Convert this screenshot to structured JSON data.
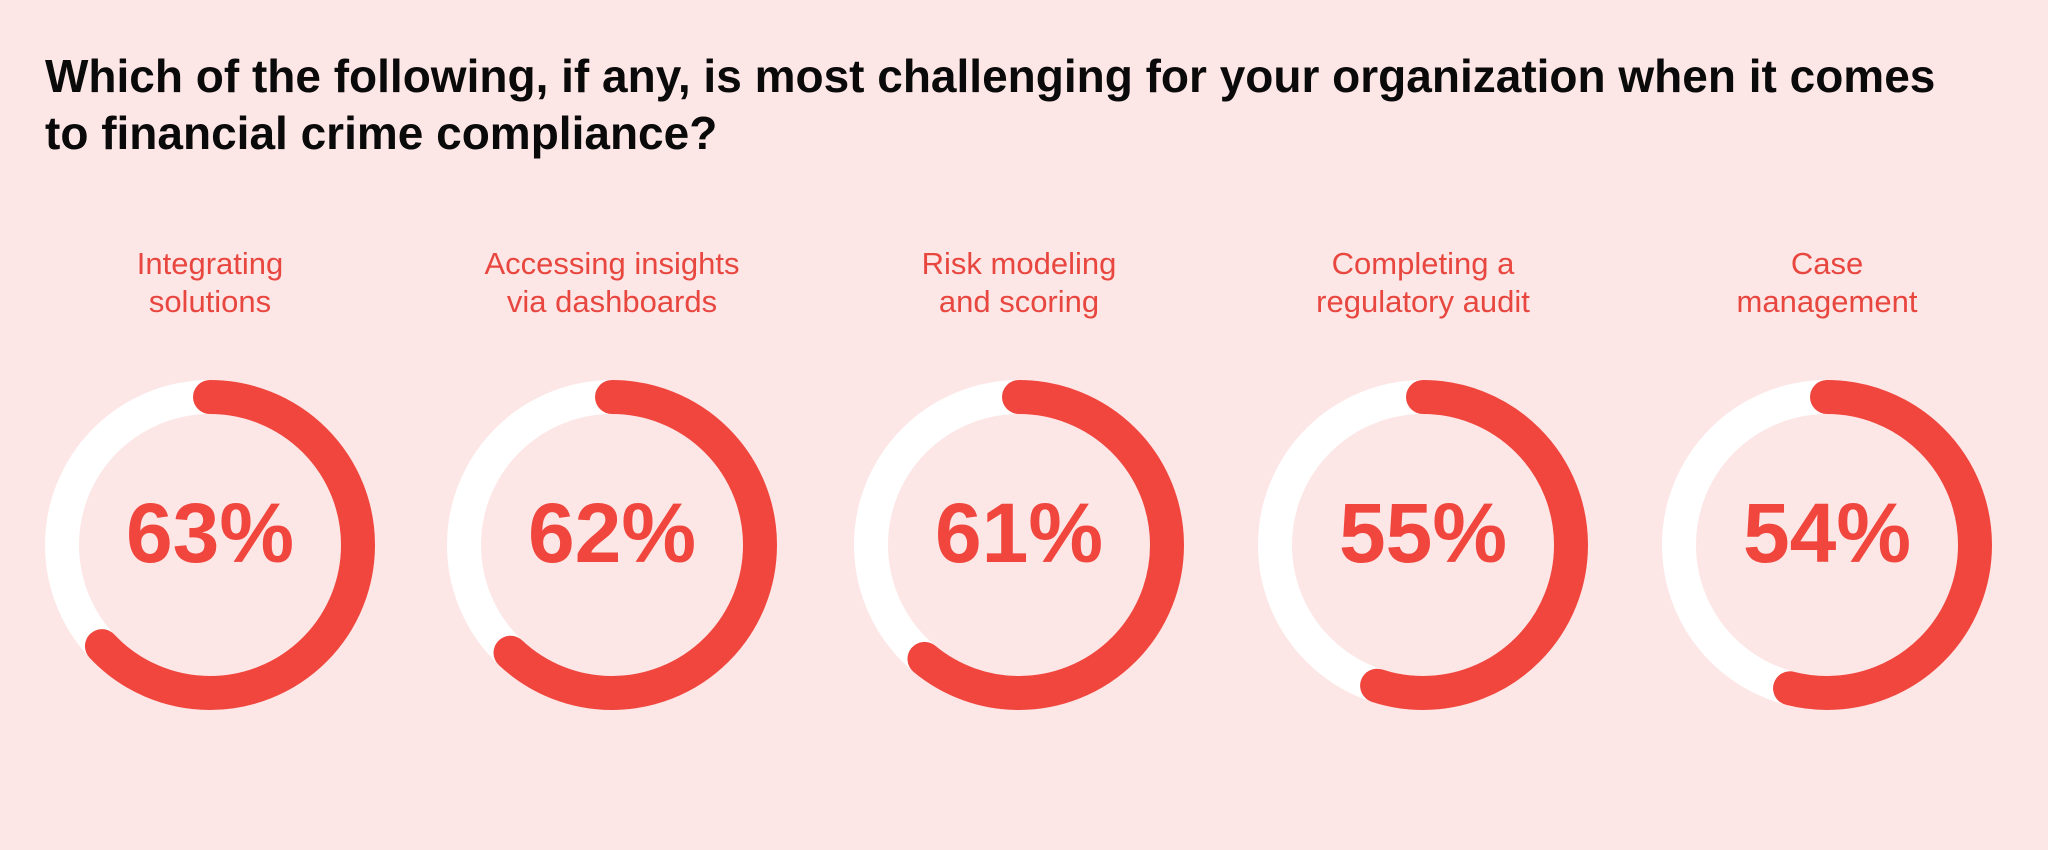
{
  "title": "Which of the following, if any, is most challenging for your organization when it comes to financial crime compliance?",
  "colors": {
    "background": "#fde6e6",
    "accent": "#f0463e",
    "track": "#ffffff",
    "label": "#e8473f",
    "title": "#0a0a0a"
  },
  "chart_data": {
    "type": "pie",
    "title": "Which of the following, if any, is most challenging for your organization when it comes to financial crime compliance?",
    "categories": [
      "Integrating solutions",
      "Accessing insights via dashboards",
      "Risk modeling and scoring",
      "Completing a regulatory audit",
      "Case management"
    ],
    "values": [
      63,
      62,
      61,
      55,
      54
    ],
    "unit": "%",
    "items": [
      {
        "label": "Integrating\nsolutions",
        "value": 63,
        "value_text": "63%"
      },
      {
        "label": "Accessing insights\nvia dashboards",
        "value": 62,
        "value_text": "62%"
      },
      {
        "label": "Risk modeling\nand scoring",
        "value": 61,
        "value_text": "61%"
      },
      {
        "label": "Completing a\nregulatory audit",
        "value": 55,
        "value_text": "55%"
      },
      {
        "label": "Case\nmanagement",
        "value": 54,
        "value_text": "54%"
      }
    ]
  }
}
